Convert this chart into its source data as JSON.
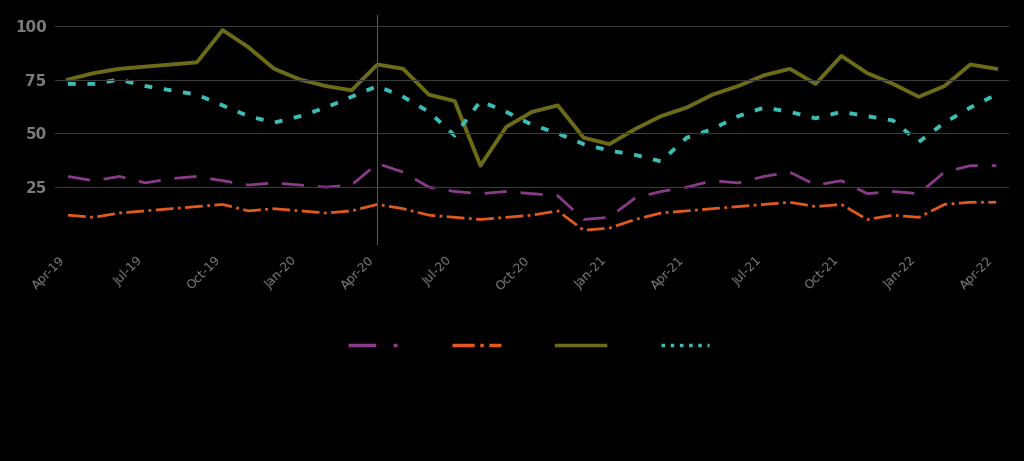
{
  "background_color": "#000000",
  "text_color": "#7a7a7a",
  "grid_color": "#3a3a3a",
  "x_labels": [
    "Apr-19",
    "Jul-19",
    "Oct-19",
    "Jan-20",
    "Apr-20",
    "Jul-20",
    "Oct-20",
    "Jan-21",
    "Apr-21",
    "Jul-21",
    "Oct-21",
    "Jan-22",
    "Apr-22"
  ],
  "x_tick_indices": [
    0,
    3,
    6,
    9,
    12,
    15,
    18,
    21,
    24,
    27,
    30,
    33,
    36
  ],
  "ylim": [
    -2,
    105
  ],
  "yticks": [
    25,
    50,
    75,
    100
  ],
  "series": {
    "purple": {
      "color": "#8B3A8B",
      "linestyle": "--",
      "linewidth": 2.0,
      "dashes": [
        8,
        5
      ],
      "values": [
        30,
        28,
        30,
        27,
        29,
        30,
        28,
        26,
        27,
        26,
        25,
        26,
        36,
        32,
        25,
        23,
        22,
        23,
        22,
        21,
        10,
        11,
        20,
        23,
        25,
        28,
        27,
        30,
        32,
        26,
        28,
        22,
        23,
        22,
        32,
        35,
        35
      ]
    },
    "orange": {
      "color": "#E05A1E",
      "linestyle": "-.",
      "linewidth": 2.0,
      "values": [
        12,
        11,
        13,
        14,
        15,
        16,
        17,
        14,
        15,
        14,
        13,
        14,
        17,
        15,
        12,
        11,
        10,
        11,
        12,
        14,
        5,
        6,
        10,
        13,
        14,
        15,
        16,
        17,
        18,
        16,
        17,
        10,
        12,
        11,
        17,
        18,
        18
      ]
    },
    "olive": {
      "color": "#6B6B18",
      "linestyle": "-",
      "linewidth": 2.8,
      "values": [
        75,
        78,
        80,
        81,
        82,
        83,
        98,
        90,
        80,
        75,
        72,
        70,
        82,
        80,
        68,
        65,
        35,
        53,
        60,
        63,
        48,
        45,
        52,
        58,
        62,
        68,
        72,
        77,
        80,
        73,
        86,
        78,
        73,
        67,
        72,
        82,
        80
      ]
    },
    "teal": {
      "color": "#3DBDB8",
      "linestyle": ":",
      "linewidth": 2.8,
      "markersize": 4,
      "values": [
        73,
        73,
        75,
        72,
        70,
        68,
        63,
        58,
        55,
        58,
        62,
        67,
        72,
        67,
        60,
        49,
        65,
        60,
        54,
        50,
        45,
        42,
        40,
        37,
        48,
        52,
        58,
        62,
        60,
        57,
        60,
        58,
        56,
        46,
        55,
        62,
        68
      ]
    }
  }
}
